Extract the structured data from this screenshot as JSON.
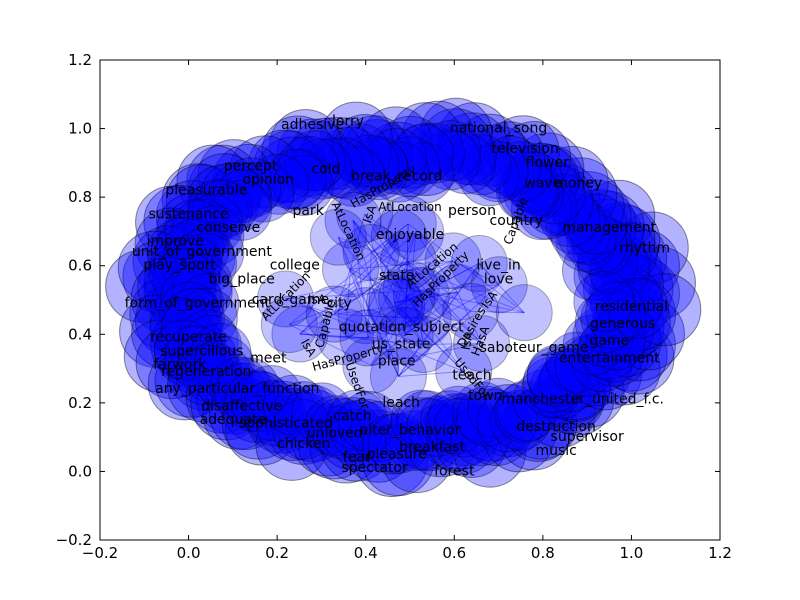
{
  "figure": {
    "x_range": [
      -0.2,
      1.2
    ],
    "y_range": [
      -0.2,
      1.2
    ],
    "node_color": "#0000ff",
    "node_alpha": 0.3,
    "edge_color": "#0000ff",
    "x_ticks": [
      {
        "value": -0.2,
        "label": "−0.2"
      },
      {
        "value": 0.0,
        "label": "0.0"
      },
      {
        "value": 0.2,
        "label": "0.2"
      },
      {
        "value": 0.4,
        "label": "0.4"
      },
      {
        "value": 0.6,
        "label": "0.6"
      },
      {
        "value": 0.8,
        "label": "0.8"
      },
      {
        "value": 1.0,
        "label": "1.0"
      },
      {
        "value": 1.2,
        "label": "1.2"
      }
    ],
    "y_ticks": [
      {
        "value": -0.2,
        "label": "−0.2"
      },
      {
        "value": 0.0,
        "label": "0.0"
      },
      {
        "value": 0.2,
        "label": "0.2"
      },
      {
        "value": 0.4,
        "label": "0.4"
      },
      {
        "value": 0.6,
        "label": "0.6"
      },
      {
        "value": 0.8,
        "label": "0.8"
      },
      {
        "value": 1.0,
        "label": "1.0"
      },
      {
        "value": 1.2,
        "label": "1.2"
      }
    ],
    "node_labels": [
      {
        "text": "break_record",
        "x": 0.47,
        "y": 0.86
      },
      {
        "text": "park",
        "x": 0.27,
        "y": 0.76
      },
      {
        "text": "person",
        "x": 0.64,
        "y": 0.76
      },
      {
        "text": "country",
        "x": 0.74,
        "y": 0.73
      },
      {
        "text": "enjoyable",
        "x": 0.5,
        "y": 0.69
      },
      {
        "text": "college",
        "x": 0.24,
        "y": 0.6
      },
      {
        "text": "state",
        "x": 0.47,
        "y": 0.57
      },
      {
        "text": "live_in",
        "x": 0.7,
        "y": 0.6
      },
      {
        "text": "love",
        "x": 0.7,
        "y": 0.56
      },
      {
        "text": "big_place",
        "x": 0.12,
        "y": 0.56
      },
      {
        "text": "card_game",
        "x": 0.23,
        "y": 0.5
      },
      {
        "text": "city",
        "x": 0.34,
        "y": 0.49
      },
      {
        "text": "quotation_subject",
        "x": 0.48,
        "y": 0.42
      },
      {
        "text": "place",
        "x": 0.47,
        "y": 0.32
      },
      {
        "text": "us_state",
        "x": 0.48,
        "y": 0.37
      },
      {
        "text": "meet",
        "x": 0.18,
        "y": 0.33
      },
      {
        "text": "catch",
        "x": 0.37,
        "y": 0.16
      },
      {
        "text": "leach",
        "x": 0.48,
        "y": 0.2
      },
      {
        "text": "unloved",
        "x": 0.33,
        "y": 0.11
      },
      {
        "text": "alter_behavior",
        "x": 0.5,
        "y": 0.12
      },
      {
        "text": "saboteur_game",
        "x": 0.78,
        "y": 0.36
      },
      {
        "text": "teach",
        "x": 0.64,
        "y": 0.28
      },
      {
        "text": "town",
        "x": 0.67,
        "y": 0.22
      },
      {
        "text": "unit_of_government",
        "x": 0.03,
        "y": 0.64
      },
      {
        "text": "form_of_government",
        "x": 0.02,
        "y": 0.49
      },
      {
        "text": "play_sport",
        "x": -0.02,
        "y": 0.6
      },
      {
        "text": "regeneration",
        "x": 0.04,
        "y": 0.29
      },
      {
        "text": "any_particular_function",
        "x": 0.11,
        "y": 0.24
      },
      {
        "text": "recuperate",
        "x": 0.0,
        "y": 0.39
      },
      {
        "text": "supercilious",
        "x": 0.03,
        "y": 0.35
      },
      {
        "text": "farwork",
        "x": -0.02,
        "y": 0.31
      },
      {
        "text": "sustenance",
        "x": 0.0,
        "y": 0.75
      },
      {
        "text": "pleasurable",
        "x": 0.04,
        "y": 0.82
      },
      {
        "text": "improve",
        "x": -0.03,
        "y": 0.67
      },
      {
        "text": "conserve",
        "x": 0.09,
        "y": 0.71
      },
      {
        "text": "percept",
        "x": 0.14,
        "y": 0.89
      },
      {
        "text": "cold",
        "x": 0.31,
        "y": 0.88
      },
      {
        "text": "opinion",
        "x": 0.18,
        "y": 0.85
      },
      {
        "text": "national_song",
        "x": 0.7,
        "y": 1.0
      },
      {
        "text": "television",
        "x": 0.76,
        "y": 0.94
      },
      {
        "text": "flower",
        "x": 0.81,
        "y": 0.9
      },
      {
        "text": "money",
        "x": 0.88,
        "y": 0.84
      },
      {
        "text": "wave",
        "x": 0.8,
        "y": 0.84
      },
      {
        "text": "management",
        "x": 0.95,
        "y": 0.71
      },
      {
        "text": "rhythm",
        "x": 1.03,
        "y": 0.65
      },
      {
        "text": "residential",
        "x": 1.0,
        "y": 0.48
      },
      {
        "text": "generous",
        "x": 0.98,
        "y": 0.43
      },
      {
        "text": "game",
        "x": 0.95,
        "y": 0.38
      },
      {
        "text": "manchester_united_f.c.",
        "x": 0.89,
        "y": 0.21
      },
      {
        "text": "entertainment",
        "x": 0.95,
        "y": 0.33
      },
      {
        "text": "destruction",
        "x": 0.83,
        "y": 0.13
      },
      {
        "text": "music",
        "x": 0.83,
        "y": 0.06
      },
      {
        "text": "supervisor",
        "x": 0.9,
        "y": 0.1
      },
      {
        "text": "disaffective",
        "x": 0.12,
        "y": 0.19
      },
      {
        "text": "sophisticated",
        "x": 0.22,
        "y": 0.14
      },
      {
        "text": "adequate",
        "x": 0.1,
        "y": 0.15
      },
      {
        "text": "chicken",
        "x": 0.26,
        "y": 0.08
      },
      {
        "text": "spectator",
        "x": 0.42,
        "y": 0.01
      },
      {
        "text": "fear",
        "x": 0.38,
        "y": 0.04
      },
      {
        "text": "pleasure",
        "x": 0.47,
        "y": 0.05
      },
      {
        "text": "breakfast",
        "x": 0.55,
        "y": 0.07
      },
      {
        "text": "forest",
        "x": 0.6,
        "y": 0.0
      },
      {
        "text": "adhesive",
        "x": 0.28,
        "y": 1.01
      },
      {
        "text": "lorry",
        "x": 0.36,
        "y": 1.02
      }
    ],
    "edge_labels": [
      {
        "text": "HasProperty",
        "x": 0.44,
        "y": 0.83,
        "angle": -30
      },
      {
        "text": "AtLocation",
        "x": 0.5,
        "y": 0.77,
        "angle": 0
      },
      {
        "text": "IsA",
        "x": 0.41,
        "y": 0.75,
        "angle": -70
      },
      {
        "text": "AtLocation",
        "x": 0.36,
        "y": 0.7,
        "angle": 65
      },
      {
        "text": "AtLocation",
        "x": 0.55,
        "y": 0.6,
        "angle": -40
      },
      {
        "text": "HasProperty",
        "x": 0.57,
        "y": 0.56,
        "angle": -45
      },
      {
        "text": "Capable",
        "x": 0.31,
        "y": 0.43,
        "angle": -75
      },
      {
        "text": "IsA",
        "x": 0.27,
        "y": 0.36,
        "angle": 60
      },
      {
        "text": "HasProperty",
        "x": 0.36,
        "y": 0.33,
        "angle": -15
      },
      {
        "text": "UsedFor",
        "x": 0.64,
        "y": 0.27,
        "angle": 50
      },
      {
        "text": "IsA",
        "x": 0.63,
        "y": 0.38,
        "angle": -80
      },
      {
        "text": "HasA",
        "x": 0.66,
        "y": 0.38,
        "angle": -70
      },
      {
        "text": "IsA",
        "x": 0.68,
        "y": 0.5,
        "angle": -55
      },
      {
        "text": "Desires",
        "x": 0.64,
        "y": 0.42,
        "angle": -60
      },
      {
        "text": "UsedFor",
        "x": 0.38,
        "y": 0.25,
        "angle": 70
      },
      {
        "text": "AtLocation",
        "x": 0.22,
        "y": 0.51,
        "angle": -45
      },
      {
        "text": "IsA",
        "x": 0.29,
        "y": 0.5,
        "angle": 0
      },
      {
        "text": "Capable",
        "x": 0.74,
        "y": 0.73,
        "angle": -70
      }
    ]
  }
}
